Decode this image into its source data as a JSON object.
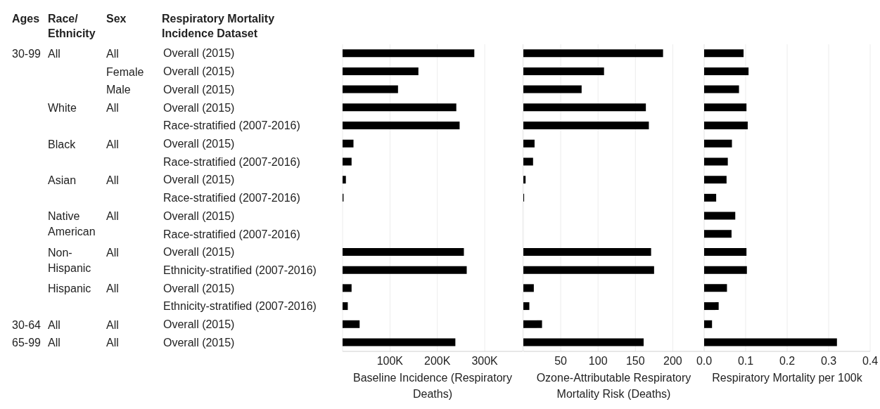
{
  "chart_data": [
    {
      "type": "other",
      "annotations": [
        "Ages",
        "Race/ Ethnicity",
        "Sex",
        "Respiratory Mortality Incidence Dataset",
        "30-99",
        "30-64",
        "65-99",
        "All",
        "White",
        "Black",
        "Asian",
        "Native American",
        "Non-Hispanic",
        "Hispanic",
        "All",
        "All",
        "All",
        "Female",
        "Male",
        "All",
        "All",
        "All",
        "All",
        "All",
        "All",
        "All",
        "All"
      ]
    },
    {
      "type": "bar",
      "orientation": "horizontal",
      "color": "#000000",
      "grid": "x",
      "xlabel": "Baseline Incidence (Respiratory Deaths)",
      "categories": [
        "Overall (2015)",
        "Overall (2015)",
        "Overall (2015)",
        "Overall (2015)",
        "Race-stratified (2007-2016)",
        "Overall (2015)",
        "Race-stratified (2007-2016)",
        "Overall (2015)",
        "Race-stratified (2007-2016)",
        "Overall (2015)",
        "Race-stratified (2007-2016)",
        "Overall (2015)",
        "Ethnicity-stratified (2007-2016)",
        "Overall (2015)",
        "Ethnicity-stratified (2007-2016)",
        "Overall (2015)",
        "Overall (2015)"
      ],
      "values": [
        278000,
        160000,
        117000,
        240000,
        247000,
        23000,
        19000,
        7000,
        2000,
        null,
        null,
        256000,
        262000,
        19000,
        11000,
        36000,
        238000
      ],
      "xlim": [
        0,
        380000
      ],
      "xticks": [
        {
          "value": 0,
          "label": null
        },
        {
          "value": 100000,
          "label": "100K"
        },
        {
          "value": 200000,
          "label": "200K"
        },
        {
          "value": 300000,
          "label": "300K"
        }
      ]
    },
    {
      "type": "bar",
      "orientation": "horizontal",
      "color": "#000000",
      "grid": "x",
      "tick_labels": "x",
      "xlabel": "Ozone-Attributable Respiratory Mortality Risk (Deaths)",
      "categories": [
        null,
        null,
        null,
        null,
        null,
        null,
        null,
        null,
        null,
        null,
        null,
        null,
        null,
        null,
        null,
        null,
        null
      ],
      "values": [
        187,
        108,
        78,
        164,
        168,
        15,
        13,
        3,
        1,
        null,
        null,
        171,
        175,
        14,
        8,
        25,
        161
      ],
      "xlim": [
        0,
        242
      ],
      "xticks": [
        {
          "value": 0,
          "label": null
        },
        50,
        100,
        150,
        200
      ]
    },
    {
      "type": "bar",
      "orientation": "horizontal",
      "color": "#000000",
      "grid": "x",
      "tick_labels": "x",
      "xlabel": "Respiratory Mortality per 100k",
      "categories": [
        null,
        null,
        null,
        null,
        null,
        null,
        null,
        null,
        null,
        null,
        null,
        null,
        null,
        null,
        null,
        null,
        null
      ],
      "values": [
        0.095,
        0.107,
        0.084,
        0.102,
        0.105,
        0.067,
        0.057,
        0.054,
        0.029,
        0.075,
        0.066,
        0.102,
        0.103,
        0.055,
        0.035,
        0.019,
        0.32
      ],
      "xlim": [
        0,
        0.4
      ],
      "xticks": [
        {
          "value": 0,
          "label": "0.0"
        },
        0.1,
        0.2,
        0.3,
        0.4
      ]
    }
  ]
}
